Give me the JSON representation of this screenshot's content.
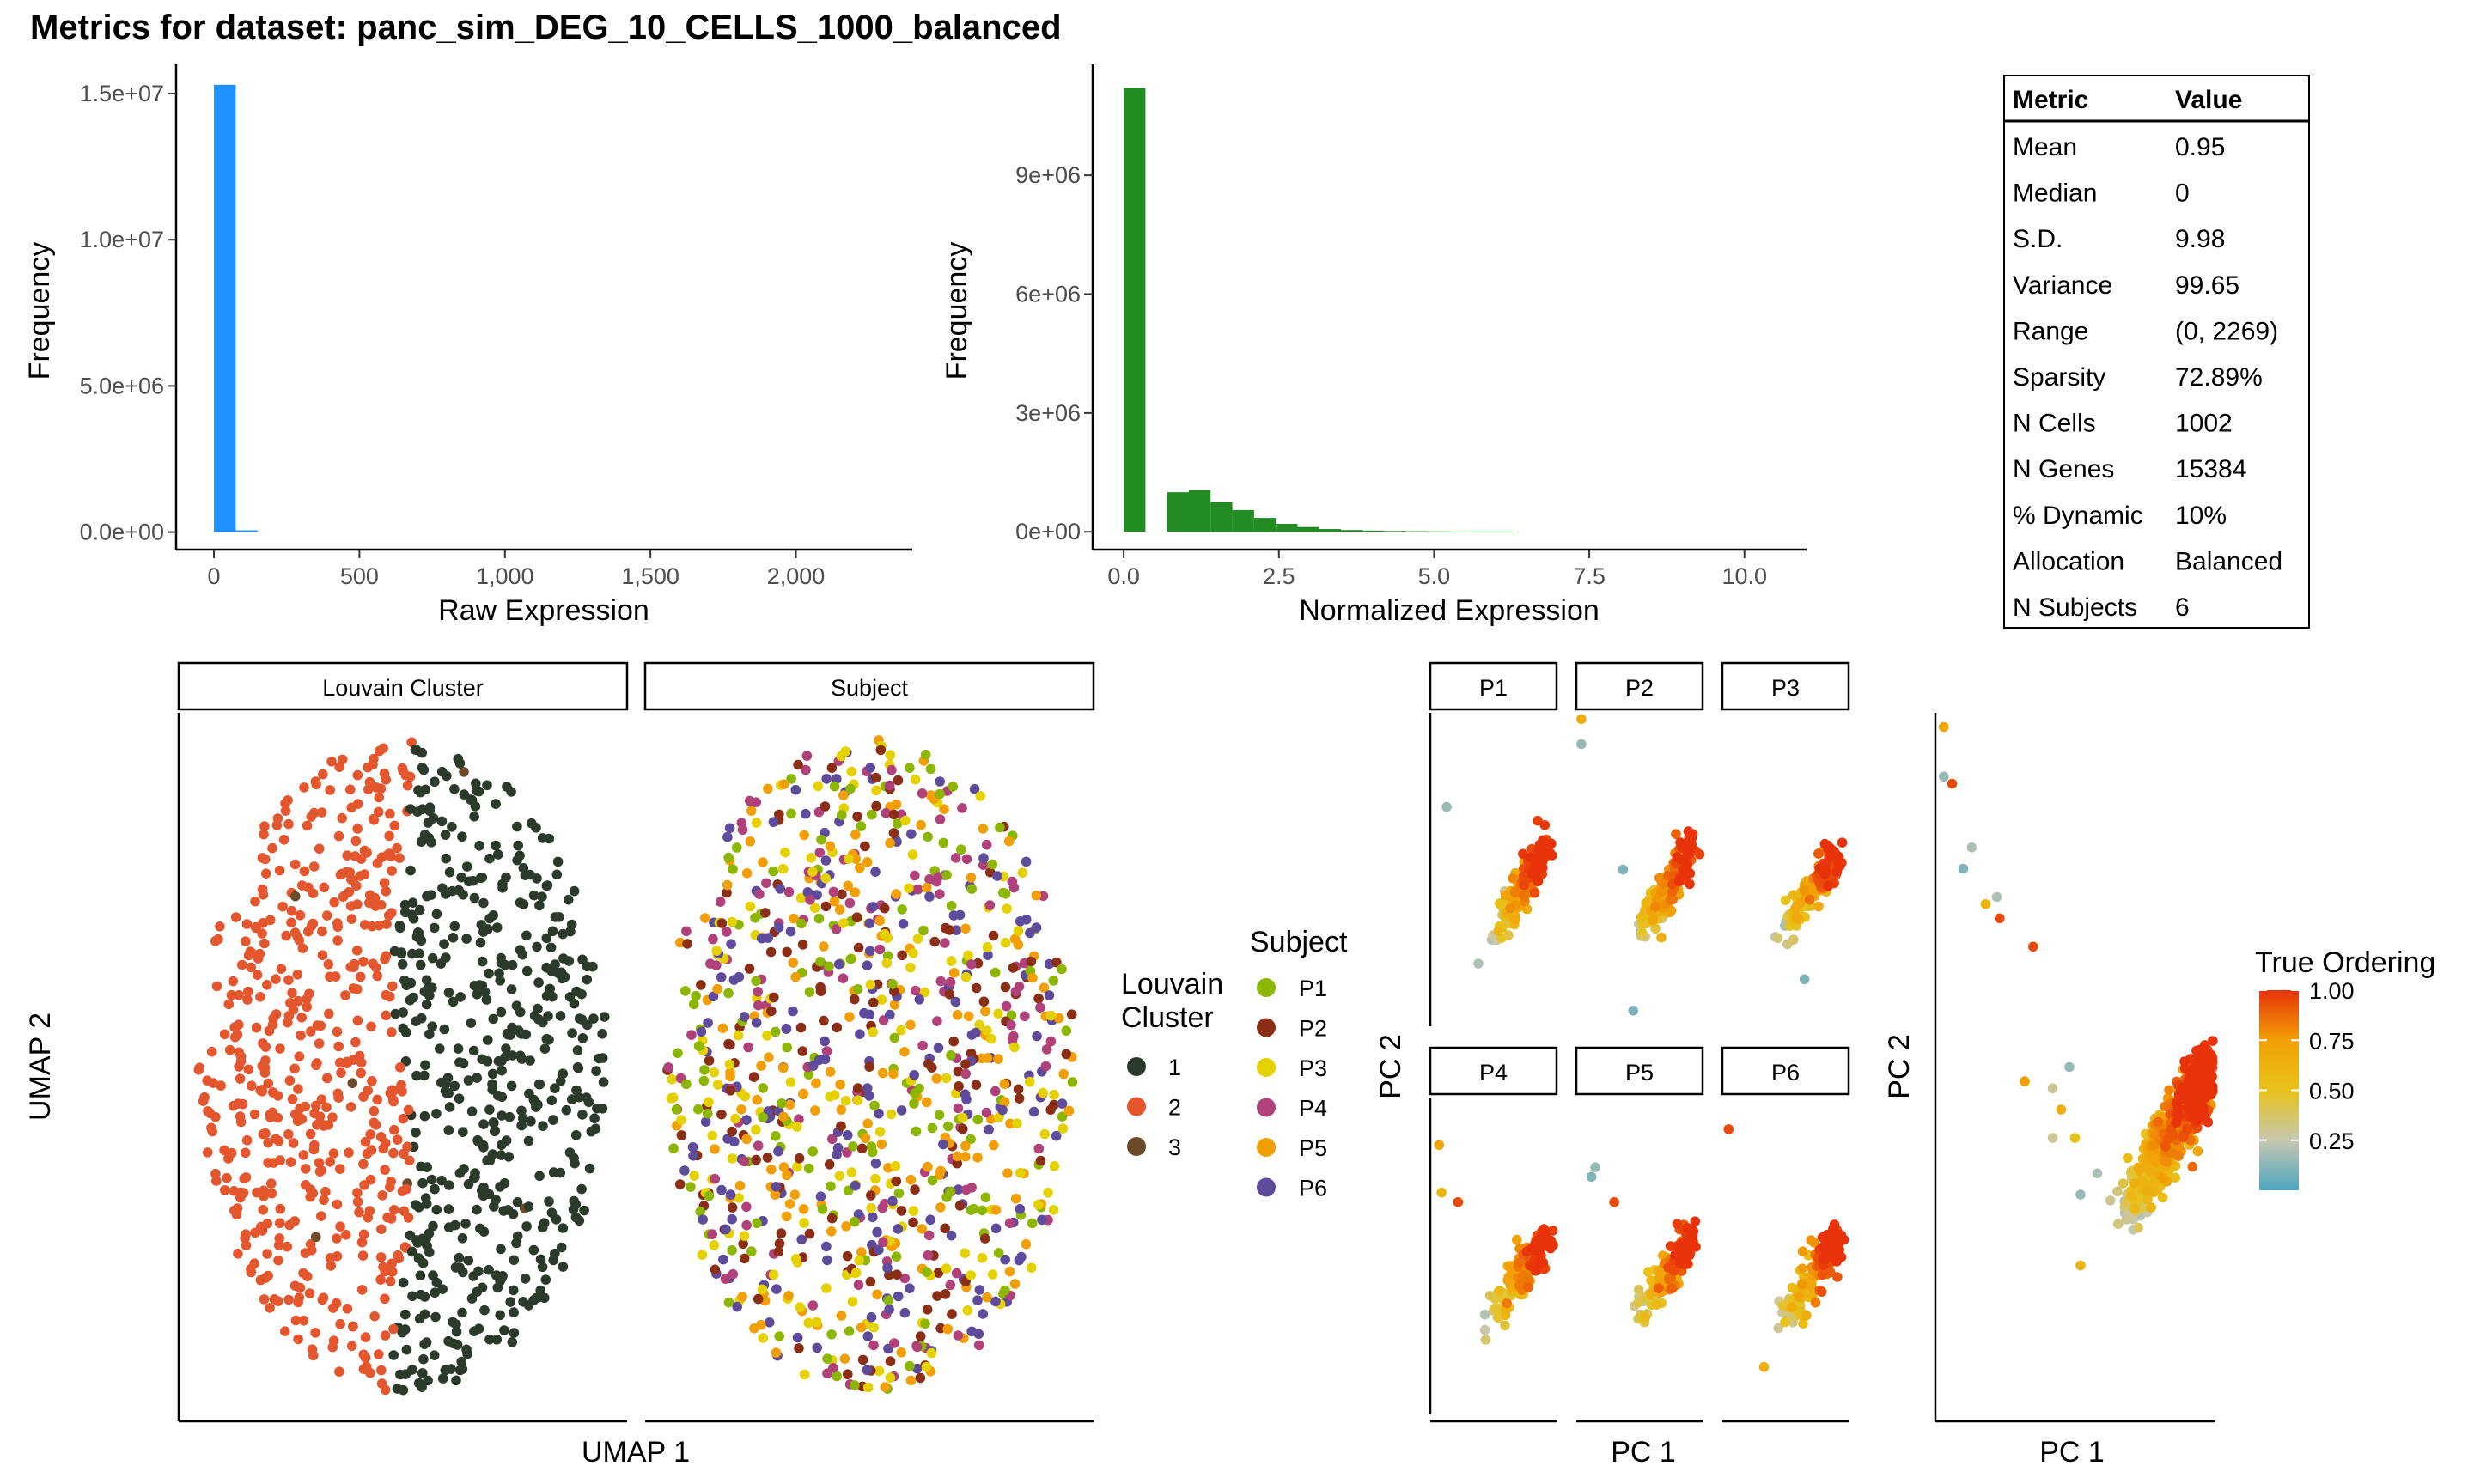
{
  "figure": {
    "title": "Metrics for dataset: panc_sim_DEG_10_CELLS_1000_balanced"
  },
  "metrics_table": {
    "headers": [
      "Metric",
      "Value"
    ],
    "rows": [
      [
        "Mean",
        "0.95"
      ],
      [
        "Median",
        "0"
      ],
      [
        "S.D.",
        "9.98"
      ],
      [
        "Variance",
        "99.65"
      ],
      [
        "Range",
        "(0, 2269)"
      ],
      [
        "Sparsity",
        "72.89%"
      ],
      [
        "N Cells",
        "1002"
      ],
      [
        "N Genes",
        "15384"
      ],
      [
        "% Dynamic",
        "10%"
      ],
      [
        "Allocation",
        "Balanced"
      ],
      [
        "N Subjects",
        "6"
      ]
    ]
  },
  "chart_data": [
    {
      "id": "raw-hist",
      "type": "bar",
      "xlabel": "Raw Expression",
      "ylabel": "Frequency",
      "color": "#1E90FF",
      "bin_width": 75,
      "bins_x": [
        0,
        75
      ],
      "values": [
        15300000,
        60000
      ],
      "xlim": [
        -130,
        2400
      ],
      "ylim": [
        -600000,
        16000000
      ],
      "x_ticks": [
        0,
        500,
        1000,
        1500,
        2000
      ],
      "x_tick_labels": [
        "0",
        "500",
        "1,000",
        "1,500",
        "2,000"
      ],
      "y_ticks": [
        0,
        5000000,
        10000000,
        15000000
      ],
      "y_tick_labels": [
        "0.0e+00",
        "5.0e+06",
        "1.0e+07",
        "1.5e+07"
      ]
    },
    {
      "id": "norm-hist",
      "type": "bar",
      "xlabel": "Normalized Expression",
      "ylabel": "Frequency",
      "color": "#228B22",
      "bin_width": 0.35,
      "bins_x": [
        0,
        0.35,
        0.7,
        1.05,
        1.4,
        1.75,
        2.1,
        2.45,
        2.8,
        3.15,
        3.5,
        3.85,
        4.2,
        4.55,
        4.9,
        5.25,
        5.6,
        5.95
      ],
      "values": [
        11200000,
        0,
        1000000,
        1050000,
        750000,
        550000,
        350000,
        200000,
        120000,
        70000,
        45000,
        30000,
        20000,
        15000,
        10000,
        8000,
        5000,
        3000
      ],
      "xlim": [
        -0.5,
        11.0
      ],
      "ylim": [
        -450000,
        11800000
      ],
      "x_ticks": [
        0,
        2.5,
        5,
        7.5,
        10
      ],
      "x_tick_labels": [
        "0.0",
        "2.5",
        "5.0",
        "7.5",
        "10.0"
      ],
      "y_ticks": [
        0,
        3000000,
        6000000,
        9000000
      ],
      "y_tick_labels": [
        "0e+00",
        "3e+06",
        "6e+06",
        "9e+06"
      ]
    },
    {
      "id": "umap",
      "type": "scatter",
      "xlabel": "UMAP 1",
      "ylabel": "UMAP 2",
      "facets": [
        "Louvain Cluster",
        "Subject"
      ],
      "points_per_facet": 1002,
      "legends": [
        {
          "title_lines": [
            "Louvain",
            "Cluster"
          ],
          "entries": [
            {
              "label": "1",
              "color": "#2B3A2B"
            },
            {
              "label": "2",
              "color": "#E4572E"
            },
            {
              "label": "3",
              "color": "#6B4B2A"
            }
          ]
        },
        {
          "title_lines": [
            "Subject"
          ],
          "entries": [
            {
              "label": "P1",
              "color": "#8DB600"
            },
            {
              "label": "P2",
              "color": "#8B2E16"
            },
            {
              "label": "P3",
              "color": "#E5D100"
            },
            {
              "label": "P4",
              "color": "#B0417A"
            },
            {
              "label": "P5",
              "color": "#F29F05"
            },
            {
              "label": "P6",
              "color": "#5E4B9C"
            }
          ]
        }
      ]
    },
    {
      "id": "pca-by-subject",
      "type": "scatter",
      "xlabel": "PC 1",
      "ylabel": "PC 2",
      "facets": [
        "P1",
        "P2",
        "P3",
        "P4",
        "P5",
        "P6"
      ]
    },
    {
      "id": "pca-overall",
      "type": "scatter",
      "xlabel": "PC 1",
      "ylabel": "PC 2",
      "colorbar": {
        "title": "True Ordering",
        "ticks": [
          1.0,
          0.75,
          0.5,
          0.25
        ],
        "tick_labels": [
          "1.00",
          "0.75",
          "0.50",
          "0.25"
        ],
        "range": [
          0,
          1
        ],
        "gradient": [
          "#4DA6C0",
          "#C6C7B0",
          "#E8C21A",
          "#F29F05",
          "#E8330A"
        ]
      }
    }
  ]
}
